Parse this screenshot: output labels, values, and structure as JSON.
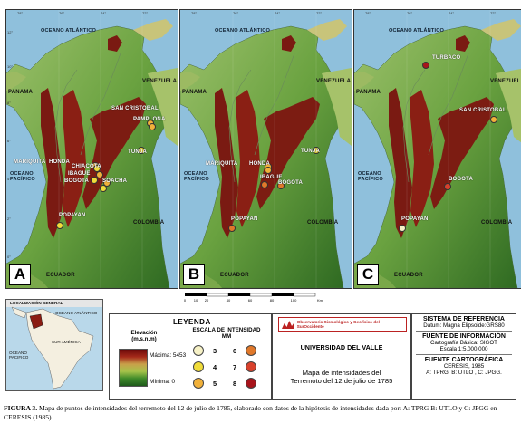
{
  "panels": [
    {
      "letter": "A",
      "lon_ticks": [
        "78°",
        "76°",
        "74°",
        "72°"
      ],
      "labels": {
        "atlantic": "OCEANO ATLÁNTICO",
        "panama": "PANAMA",
        "venezuela": "VENEZUELA",
        "pacific": "OCEANO\nPACÍFICO",
        "colombia": "COLOMBIA",
        "ecuador": "ECUADOR"
      },
      "cities": [
        {
          "name": "SAN CRISTOBAL",
          "intensity": 5
        },
        {
          "name": "PAMPLONA",
          "intensity": 5
        },
        {
          "name": "TUNJA",
          "intensity": 4
        },
        {
          "name": "MARIQUITA",
          "intensity": 5
        },
        {
          "name": "HONDA",
          "intensity": 4
        },
        {
          "name": "CHIACOTA",
          "intensity": 5
        },
        {
          "name": "IBAGUE",
          "intensity": 4
        },
        {
          "name": "BOGOTA",
          "intensity": 5
        },
        {
          "name": "SOACHA",
          "intensity": 4
        },
        {
          "name": "POPAYAN",
          "intensity": 4
        }
      ]
    },
    {
      "letter": "B",
      "lon_ticks": [
        "78°",
        "76°",
        "74°",
        "72°"
      ],
      "labels": {
        "atlantic": "OCEANO ATLÁNTICO",
        "panama": "PANAMA",
        "venezuela": "VENEZUELA",
        "pacific": "OCEANO\nPACÍFICO",
        "colombia": "COLOMBIA",
        "ecuador": "ECUADOR"
      },
      "cities": [
        {
          "name": "TUNJA",
          "intensity": 4
        },
        {
          "name": "MARIQUITA",
          "intensity": 5
        },
        {
          "name": "HONDA",
          "intensity": 5
        },
        {
          "name": "IBAGUE",
          "intensity": 6
        },
        {
          "name": "BOGOTA",
          "intensity": 6
        },
        {
          "name": "POPAYAN",
          "intensity": 6
        }
      ]
    },
    {
      "letter": "C",
      "lon_ticks": [
        "78°",
        "76°",
        "74°",
        "72°"
      ],
      "labels": {
        "atlantic": "OCEANO ATLÁNTICO",
        "panama": "PANAMA",
        "venezuela": "VENEZUELA",
        "pacific": "OCEANO\nPACÍFICO",
        "colombia": "COLOMBIA",
        "ecuador": "ECUADOR"
      },
      "cities": [
        {
          "name": "TURBACO",
          "intensity": 8
        },
        {
          "name": "SAN CRISTOBAL",
          "intensity": 5
        },
        {
          "name": "BOGOTA",
          "intensity": 7
        },
        {
          "name": "POPAYAN",
          "intensity": 3
        }
      ]
    }
  ],
  "lat_ticks": [
    "12°",
    "10°",
    "8°",
    "6°",
    "4°",
    "2°",
    "0°"
  ],
  "scalebar": {
    "ticks": [
      "0",
      "10",
      "20",
      "40",
      "60",
      "80",
      "100"
    ],
    "unit": "Km"
  },
  "inset": {
    "title": "LOCALIZACIÓN GENERAL",
    "atlantic": "OCEANO ATLÁNTICO",
    "pacific": "OCEANO\nPACIFICO",
    "south_america": "SUR AMÉRICA"
  },
  "legend": {
    "title": "LEYENDA",
    "elevation_title": "Elevación\n(m.s.n.m)",
    "max_label": "Máxima: 5453",
    "min_label": "Mínima: 0",
    "intensity_title": "ESCALA DE INTENSIDAD\nMM",
    "intensities": [
      {
        "value": "3",
        "color": "#f6f1c6"
      },
      {
        "value": "4",
        "color": "#f0dc3a"
      },
      {
        "value": "5",
        "color": "#f1b13a"
      },
      {
        "value": "6",
        "color": "#e0782a"
      },
      {
        "value": "7",
        "color": "#d8412c"
      },
      {
        "value": "8",
        "color": "#a8141b"
      }
    ]
  },
  "university": {
    "logo_text": "Observatorio Sismológico y Geofísico del SurOccidente",
    "name": "UNIVERSIDAD DEL VALLE",
    "map_title": "Mapa de intensidades del\nTerremoto del 12 de julio de 1785"
  },
  "reference": {
    "h1": "SISTEMA DE REFERENCIA",
    "t1": "Datum: Magna  Elipsoide:GRS80",
    "h2": "FUENTE DE INFORMACIÓN",
    "t2a": "Cartografía Básica: SIGOT",
    "t2b": "Escala 1:5.000.000",
    "h3": "FUENTE CARTOGRÁFICA",
    "t3a": "CERESIS, 1985",
    "t3b": "A: TPRG; B: UTLO , C: JPGG."
  },
  "caption": {
    "label": "FIGURA 3.",
    "text": "Mapa de puntos de intensidades del terremoto del 12 de julio de 1785, elaborado con datos de la hipótesis de intensidades dada por: A: TPRG B: UTLO y C: JPGG en CERESIS (1985)."
  }
}
